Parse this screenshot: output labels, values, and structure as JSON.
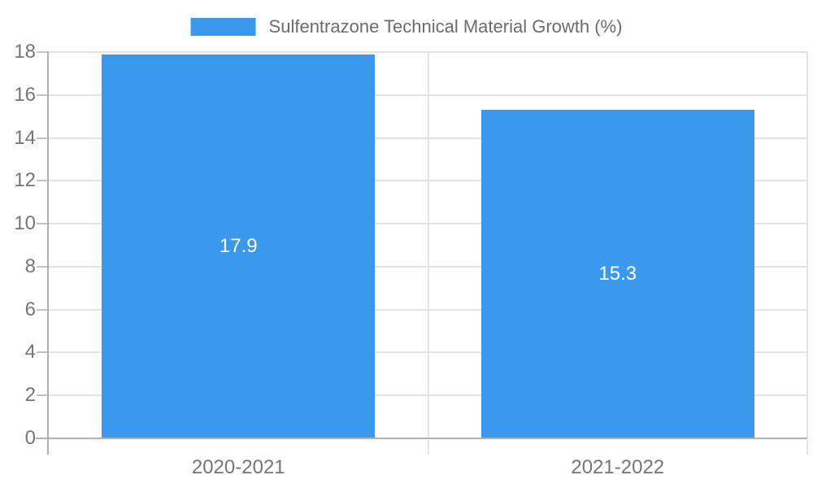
{
  "chart_data": {
    "type": "bar",
    "title": "",
    "categories": [
      "2020-2021",
      "2021-2022"
    ],
    "series": [
      {
        "name": "Sulfentrazone Technical Material Growth (%)",
        "values": [
          17.9,
          15.3
        ],
        "color": "#3a99ec"
      }
    ],
    "data_labels": [
      "17.9",
      "15.3"
    ],
    "ylim": [
      0,
      18
    ],
    "yticks": [
      0,
      2,
      4,
      6,
      8,
      10,
      12,
      14,
      16,
      18
    ],
    "grid": true,
    "legend_position": "top",
    "style": {
      "bar_color": "#3a99ec",
      "gridline_color": "#e4e4e4",
      "axis_line_color": "#b2b2b2",
      "y_tick_color": "#c2c2c2",
      "axis_text_color": "#757575",
      "legend_text_color": "#6b6b6b",
      "data_label_color": "#ffffff",
      "background_color": "#ffffff"
    }
  }
}
